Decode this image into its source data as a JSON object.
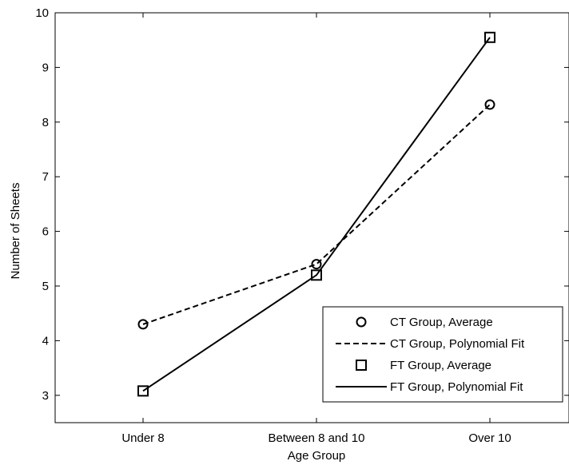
{
  "chart_data": {
    "type": "line",
    "xlabel": "Age Group",
    "ylabel": "Number of Sheets",
    "categories": [
      "Under 8",
      "Between 8 and 10",
      "Over 10"
    ],
    "ylim": [
      2.5,
      10
    ],
    "yticks": [
      3,
      4,
      5,
      6,
      7,
      8,
      9,
      10
    ],
    "grid": false,
    "legend_position": "lower-right",
    "series": [
      {
        "name": "CT Group, Average",
        "kind": "markers",
        "marker": "circle",
        "values": [
          4.3,
          5.4,
          8.32
        ]
      },
      {
        "name": "CT Group, Polynomial Fit",
        "kind": "line",
        "dash": "dashed",
        "values": [
          4.3,
          5.4,
          8.32
        ]
      },
      {
        "name": "FT Group, Average",
        "kind": "markers",
        "marker": "square",
        "values": [
          3.08,
          5.2,
          9.55
        ]
      },
      {
        "name": "FT Group, Polynomial Fit",
        "kind": "line",
        "dash": "solid",
        "values": [
          3.08,
          5.2,
          9.55
        ]
      }
    ]
  }
}
